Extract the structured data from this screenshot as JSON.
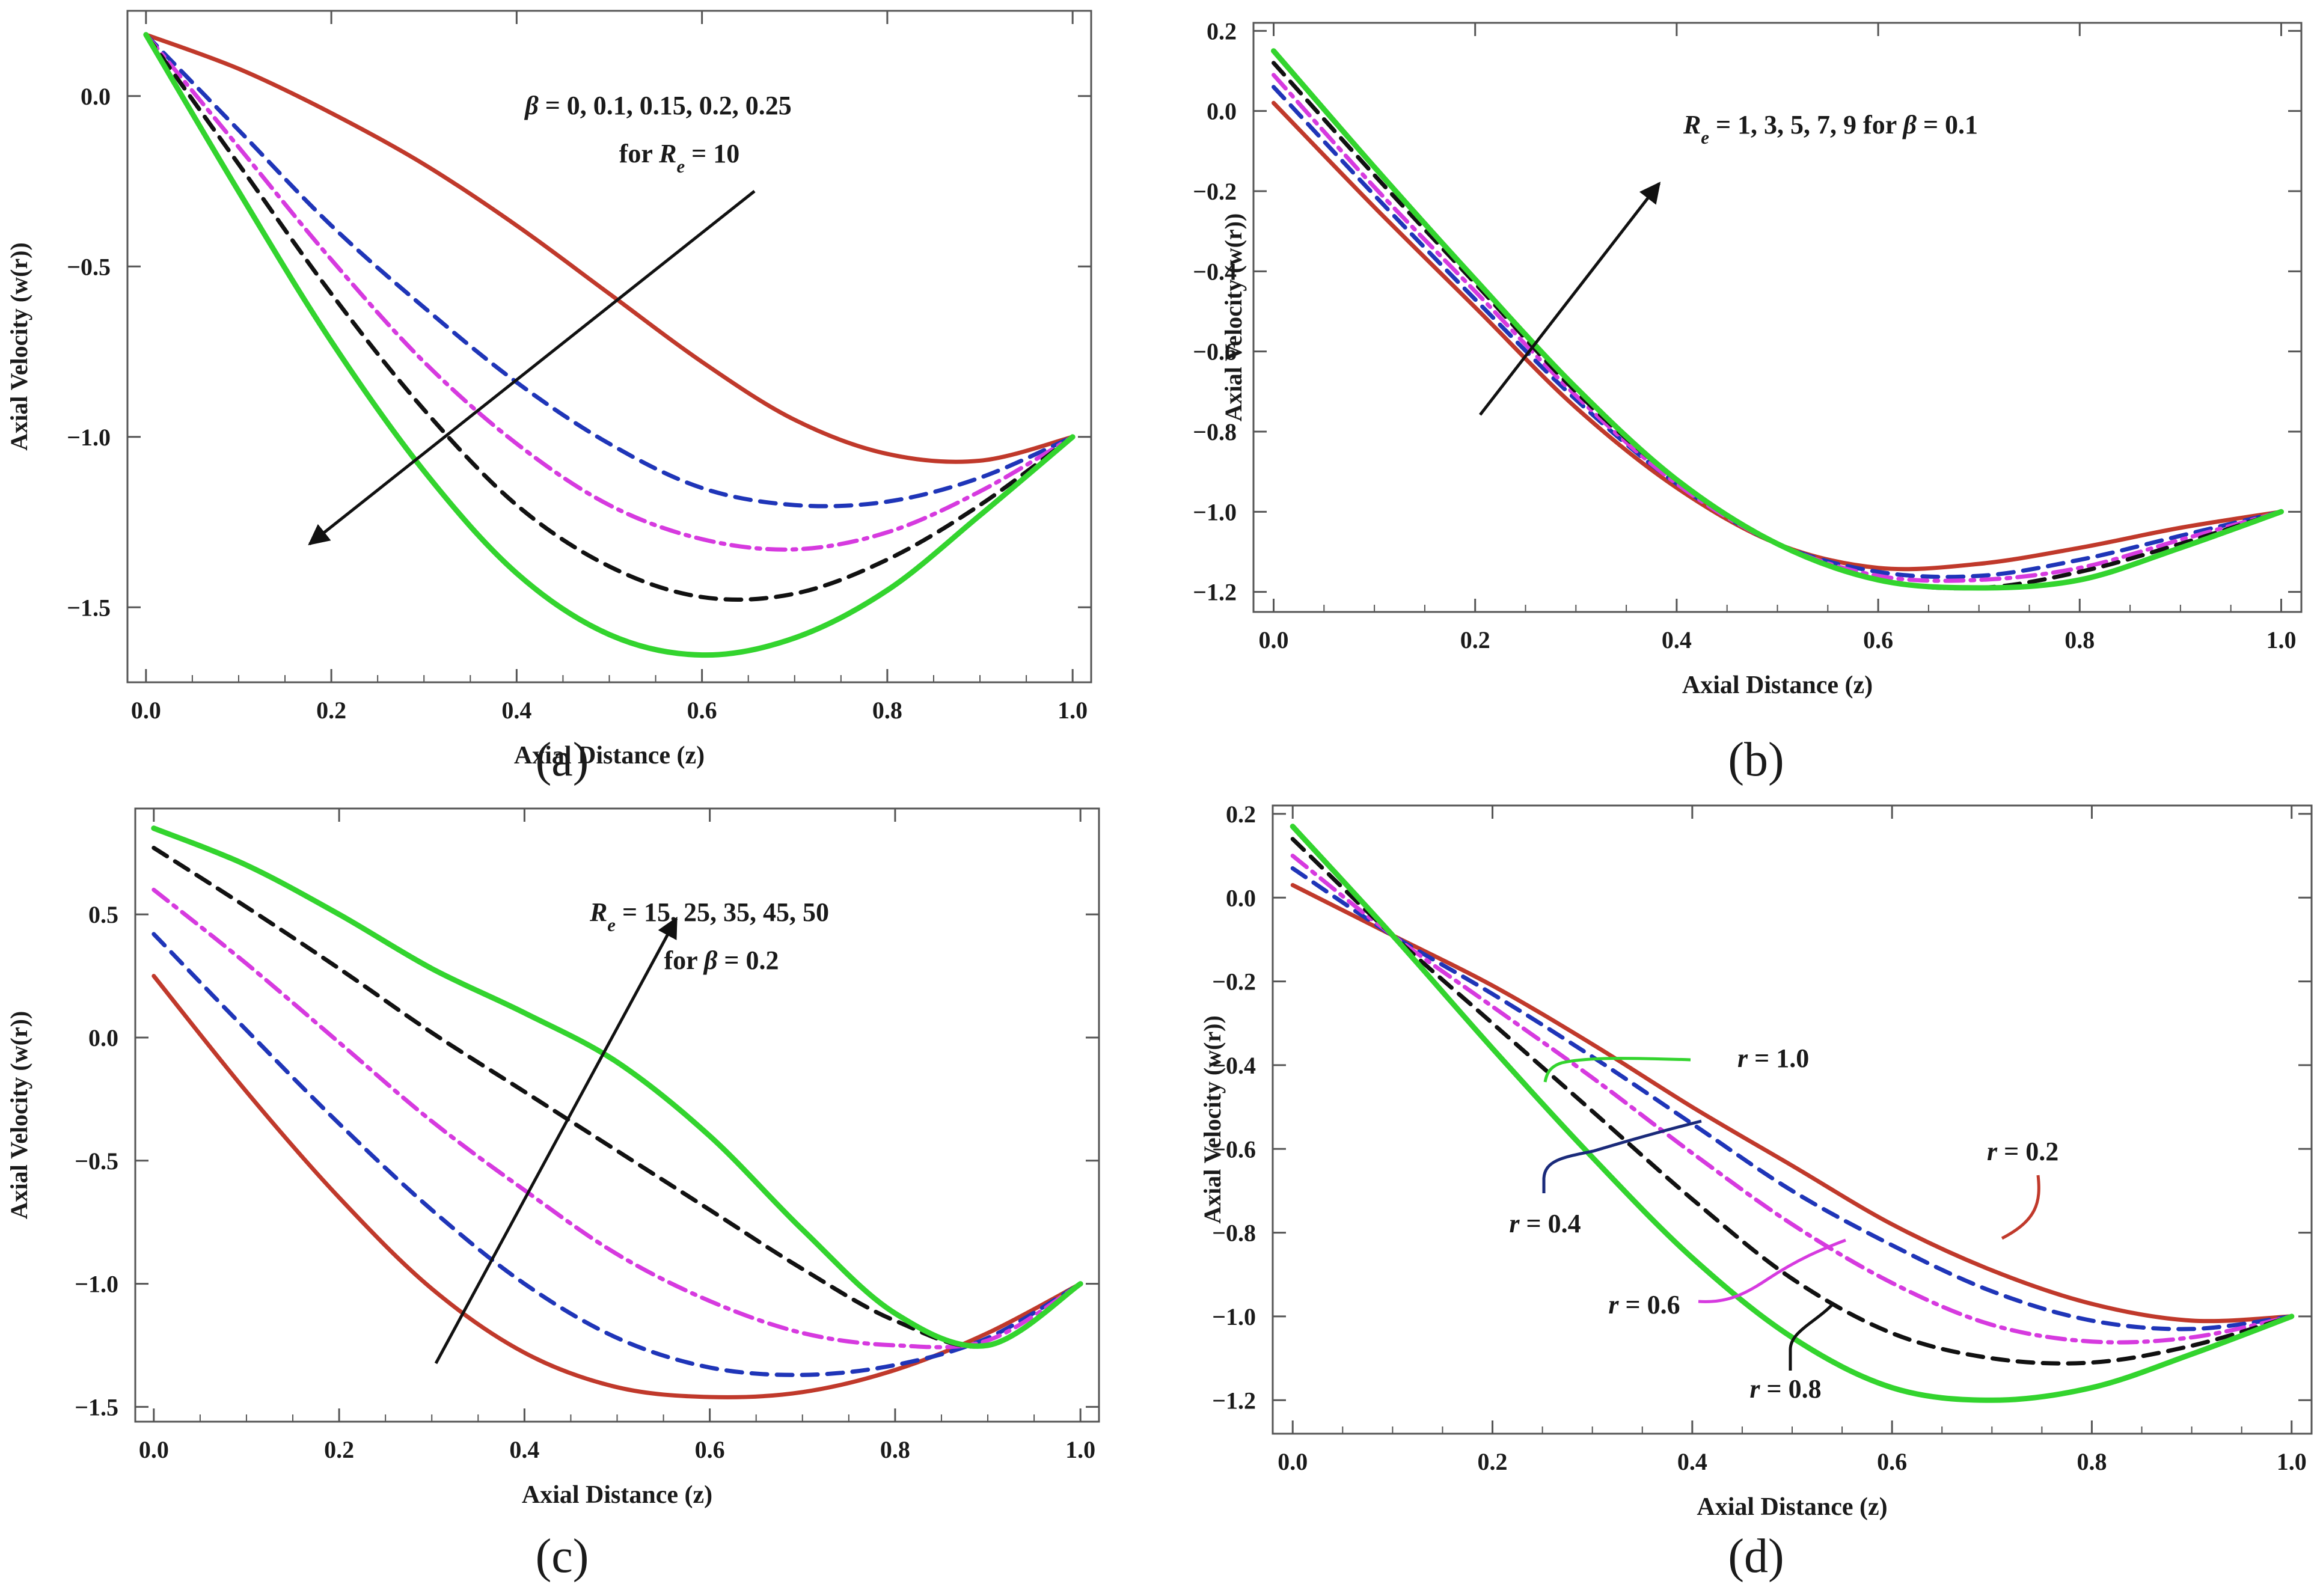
{
  "figure": {
    "panel_labels": [
      "(a)",
      "(b)",
      "(c)",
      "(d)"
    ]
  },
  "colors": {
    "red": "#c0392b",
    "blue": "#1f35b8",
    "magenta": "#d63adf",
    "black": "#111111",
    "green": "#33d42e",
    "navy": "#1a2a7a"
  },
  "chart_data": [
    {
      "panel": "(a)",
      "type": "line",
      "xlabel": "Axial Distance (z)",
      "ylabel": "Axial Velocity (w(r))",
      "xlim": [
        -0.02,
        1.02
      ],
      "ylim": [
        -1.72,
        0.25
      ],
      "xticks": [
        "0.0",
        "0.2",
        "0.4",
        "0.6",
        "0.8",
        "1.0"
      ],
      "yticks": [
        "0.0",
        "-0.5",
        "-1.0",
        "-1.5"
      ],
      "annotation": [
        "β = 0,  0.1,  0.15,  0.2,  0.25",
        "for R_e = 10"
      ],
      "series": [
        {
          "style": "solid",
          "color": "red",
          "x": [
            0,
            0.1,
            0.2,
            0.3,
            0.4,
            0.5,
            0.6,
            0.7,
            0.8,
            0.9,
            1.0
          ],
          "y": [
            0.18,
            0.08,
            -0.05,
            -0.2,
            -0.38,
            -0.58,
            -0.78,
            -0.95,
            -1.05,
            -1.07,
            -1.0
          ]
        },
        {
          "style": "dashed",
          "color": "blue",
          "x": [
            0,
            0.1,
            0.2,
            0.3,
            0.4,
            0.5,
            0.6,
            0.7,
            0.8,
            0.9,
            1.0
          ],
          "y": [
            0.18,
            -0.1,
            -0.38,
            -0.62,
            -0.84,
            -1.02,
            -1.15,
            -1.2,
            -1.19,
            -1.12,
            -1.0
          ]
        },
        {
          "style": "dashdot",
          "color": "magenta",
          "x": [
            0,
            0.1,
            0.2,
            0.3,
            0.4,
            0.5,
            0.6,
            0.7,
            0.8,
            0.9,
            1.0
          ],
          "y": [
            0.18,
            -0.15,
            -0.48,
            -0.78,
            -1.02,
            -1.2,
            -1.3,
            -1.33,
            -1.28,
            -1.16,
            -1.0
          ]
        },
        {
          "style": "dashed",
          "color": "black",
          "x": [
            0,
            0.1,
            0.2,
            0.3,
            0.4,
            0.5,
            0.6,
            0.7,
            0.8,
            0.9,
            1.0
          ],
          "y": [
            0.18,
            -0.2,
            -0.58,
            -0.92,
            -1.2,
            -1.38,
            -1.47,
            -1.46,
            -1.36,
            -1.2,
            -1.0
          ]
        },
        {
          "style": "solid",
          "color": "green",
          "x": [
            0,
            0.1,
            0.2,
            0.3,
            0.4,
            0.5,
            0.6,
            0.7,
            0.8,
            0.9,
            1.0
          ],
          "y": [
            0.18,
            -0.28,
            -0.72,
            -1.1,
            -1.4,
            -1.58,
            -1.64,
            -1.59,
            -1.45,
            -1.23,
            -1.0
          ]
        }
      ]
    },
    {
      "panel": "(b)",
      "type": "line",
      "xlabel": "Axial Distance (z)",
      "ylabel": "Axial Velocity (w(r))",
      "xlim": [
        -0.02,
        1.02
      ],
      "ylim": [
        -1.25,
        0.22
      ],
      "xticks": [
        "0.0",
        "0.2",
        "0.4",
        "0.6",
        "0.8",
        "1.0"
      ],
      "yticks": [
        "0.2",
        "0.0",
        "-0.2",
        "-0.4",
        "-0.6",
        "-0.8",
        "-1.0",
        "-1.2"
      ],
      "annotation": [
        "R_e = 1,  3,  5,  7,  9 for β = 0.1"
      ],
      "series": [
        {
          "style": "solid",
          "color": "red",
          "x": [
            0,
            0.1,
            0.2,
            0.3,
            0.4,
            0.5,
            0.6,
            0.7,
            0.8,
            0.9,
            1.0
          ],
          "y": [
            0.02,
            -0.24,
            -0.49,
            -0.74,
            -0.94,
            -1.08,
            -1.14,
            -1.13,
            -1.09,
            -1.04,
            -1.0
          ]
        },
        {
          "style": "dashed",
          "color": "blue",
          "x": [
            0,
            0.1,
            0.2,
            0.3,
            0.4,
            0.5,
            0.6,
            0.7,
            0.8,
            0.9,
            1.0
          ],
          "y": [
            0.06,
            -0.21,
            -0.47,
            -0.72,
            -0.93,
            -1.08,
            -1.15,
            -1.16,
            -1.12,
            -1.06,
            -1.0
          ]
        },
        {
          "style": "dashdot",
          "color": "magenta",
          "x": [
            0,
            0.1,
            0.2,
            0.3,
            0.4,
            0.5,
            0.6,
            0.7,
            0.8,
            0.9,
            1.0
          ],
          "y": [
            0.09,
            -0.19,
            -0.45,
            -0.71,
            -0.93,
            -1.08,
            -1.16,
            -1.17,
            -1.14,
            -1.07,
            -1.0
          ]
        },
        {
          "style": "dashed",
          "color": "black",
          "x": [
            0,
            0.1,
            0.2,
            0.3,
            0.4,
            0.5,
            0.6,
            0.7,
            0.8,
            0.9,
            1.0
          ],
          "y": [
            0.12,
            -0.16,
            -0.43,
            -0.7,
            -0.92,
            -1.08,
            -1.17,
            -1.19,
            -1.15,
            -1.08,
            -1.0
          ]
        },
        {
          "style": "solid",
          "color": "green",
          "x": [
            0,
            0.1,
            0.2,
            0.3,
            0.4,
            0.5,
            0.6,
            0.7,
            0.8,
            0.9,
            1.0
          ],
          "y": [
            0.15,
            -0.14,
            -0.42,
            -0.69,
            -0.92,
            -1.08,
            -1.17,
            -1.19,
            -1.17,
            -1.09,
            -1.0
          ]
        }
      ]
    },
    {
      "panel": "(c)",
      "type": "line",
      "xlabel": "Axial Distance (z)",
      "ylabel": "Axial Velocity (w(r))",
      "xlim": [
        -0.02,
        1.02
      ],
      "ylim": [
        -1.56,
        0.93
      ],
      "xticks": [
        "0.0",
        "0.2",
        "0.4",
        "0.6",
        "0.8",
        "1.0"
      ],
      "yticks": [
        "0.5",
        "0.0",
        "-0.5",
        "-1.0",
        "-1.5"
      ],
      "annotation": [
        "R_e = 15,  25,  35,  45,  50",
        "for β = 0.2"
      ],
      "series": [
        {
          "style": "solid",
          "color": "red",
          "x": [
            0,
            0.1,
            0.2,
            0.3,
            0.4,
            0.5,
            0.6,
            0.7,
            0.8,
            0.9,
            1.0
          ],
          "y": [
            0.25,
            -0.22,
            -0.65,
            -1.02,
            -1.28,
            -1.42,
            -1.46,
            -1.44,
            -1.35,
            -1.2,
            -1.0
          ]
        },
        {
          "style": "dashed",
          "color": "blue",
          "x": [
            0,
            0.1,
            0.2,
            0.3,
            0.4,
            0.5,
            0.6,
            0.7,
            0.8,
            0.9,
            1.0
          ],
          "y": [
            0.42,
            0.03,
            -0.35,
            -0.7,
            -1.0,
            -1.22,
            -1.34,
            -1.37,
            -1.33,
            -1.22,
            -1.0
          ]
        },
        {
          "style": "dashdot",
          "color": "magenta",
          "x": [
            0,
            0.1,
            0.2,
            0.3,
            0.4,
            0.5,
            0.6,
            0.7,
            0.8,
            0.9,
            1.0
          ],
          "y": [
            0.6,
            0.3,
            -0.02,
            -0.34,
            -0.62,
            -0.88,
            -1.07,
            -1.2,
            -1.25,
            -1.23,
            -1.0
          ]
        },
        {
          "style": "dashed",
          "color": "black",
          "x": [
            0,
            0.1,
            0.2,
            0.3,
            0.4,
            0.5,
            0.6,
            0.7,
            0.8,
            0.9,
            1.0
          ],
          "y": [
            0.77,
            0.53,
            0.28,
            0.02,
            -0.22,
            -0.46,
            -0.7,
            -0.94,
            -1.15,
            -1.25,
            -1.0
          ]
        },
        {
          "style": "solid",
          "color": "green",
          "x": [
            0,
            0.1,
            0.2,
            0.3,
            0.4,
            0.5,
            0.6,
            0.7,
            0.8,
            0.9,
            1.0
          ],
          "y": [
            0.85,
            0.7,
            0.5,
            0.28,
            0.1,
            -0.1,
            -0.4,
            -0.78,
            -1.12,
            -1.25,
            -1.0
          ]
        }
      ]
    },
    {
      "panel": "(d)",
      "type": "line",
      "xlabel": "Axial Distance (z)",
      "ylabel": "Axial Velocity (w(r))",
      "xlim": [
        -0.02,
        1.02
      ],
      "ylim": [
        -1.28,
        0.22
      ],
      "xticks": [
        "0.0",
        "0.2",
        "0.4",
        "0.6",
        "0.8",
        "1.0"
      ],
      "yticks": [
        "0.2",
        "0.0",
        "-0.2",
        "-0.4",
        "-0.6",
        "-0.8",
        "-1.0",
        "-1.2"
      ],
      "series": [
        {
          "name": "r = 0.2",
          "style": "solid",
          "color": "red",
          "x": [
            0,
            0.1,
            0.2,
            0.3,
            0.4,
            0.5,
            0.6,
            0.7,
            0.8,
            0.9,
            1.0
          ],
          "y": [
            0.03,
            -0.09,
            -0.21,
            -0.35,
            -0.5,
            -0.64,
            -0.78,
            -0.89,
            -0.97,
            -1.01,
            -1.0
          ]
        },
        {
          "name": "r = 0.4",
          "style": "dashed",
          "color": "blue",
          "x": [
            0,
            0.1,
            0.2,
            0.3,
            0.4,
            0.5,
            0.6,
            0.7,
            0.8,
            0.9,
            1.0
          ],
          "y": [
            0.07,
            -0.09,
            -0.23,
            -0.38,
            -0.54,
            -0.7,
            -0.83,
            -0.94,
            -1.01,
            -1.03,
            -1.0
          ]
        },
        {
          "name": "r = 0.6",
          "style": "dashdot",
          "color": "magenta",
          "x": [
            0,
            0.1,
            0.2,
            0.3,
            0.4,
            0.5,
            0.6,
            0.7,
            0.8,
            0.9,
            1.0
          ],
          "y": [
            0.1,
            -0.09,
            -0.26,
            -0.43,
            -0.61,
            -0.78,
            -0.92,
            -1.02,
            -1.06,
            -1.05,
            -1.0
          ]
        },
        {
          "name": "r = 0.8",
          "style": "dashed",
          "color": "black",
          "x": [
            0,
            0.1,
            0.2,
            0.3,
            0.4,
            0.5,
            0.6,
            0.7,
            0.8,
            0.9,
            1.0
          ],
          "y": [
            0.14,
            -0.09,
            -0.3,
            -0.51,
            -0.72,
            -0.91,
            -1.04,
            -1.1,
            -1.11,
            -1.07,
            -1.0
          ]
        },
        {
          "name": "r = 1.0",
          "style": "solid",
          "color": "green",
          "x": [
            0,
            0.1,
            0.2,
            0.3,
            0.4,
            0.5,
            0.6,
            0.7,
            0.8,
            0.9,
            1.0
          ],
          "y": [
            0.17,
            -0.09,
            -0.36,
            -0.62,
            -0.86,
            -1.05,
            -1.17,
            -1.2,
            -1.17,
            -1.09,
            -1.0
          ]
        }
      ]
    }
  ]
}
